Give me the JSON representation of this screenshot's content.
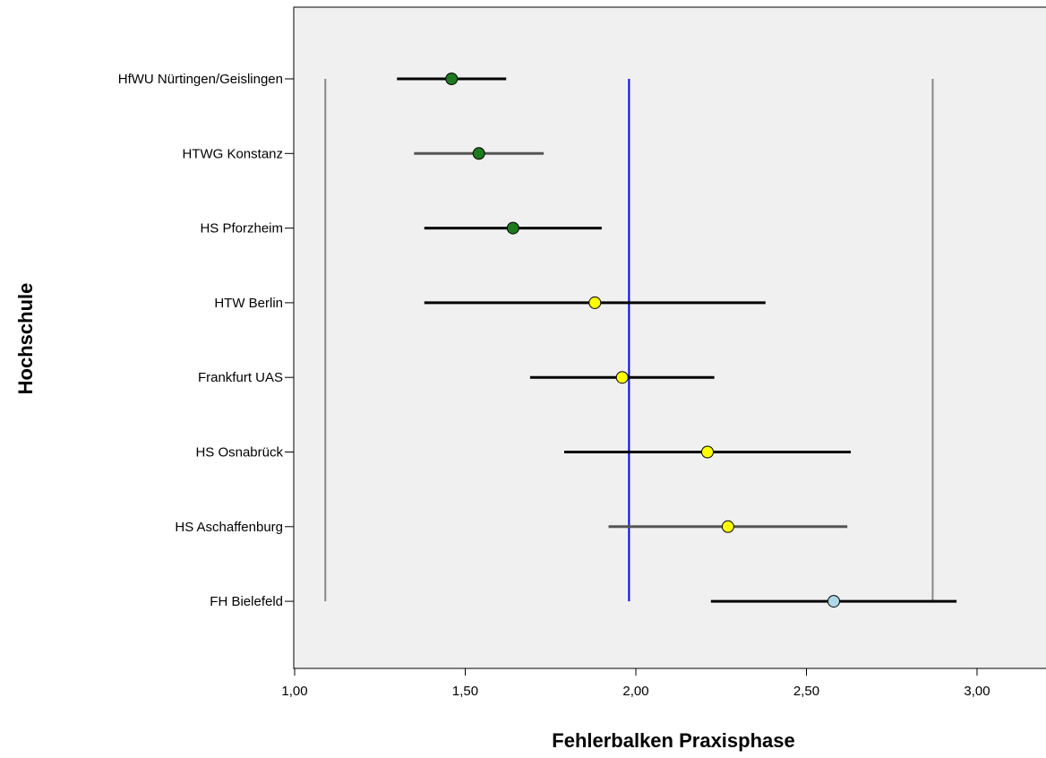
{
  "chart_data": {
    "type": "scatter",
    "subtype": "error-bar",
    "xlabel": "Fehlerbalken Praxisphase",
    "ylabel": "Hochschule",
    "xlim": [
      1.0,
      3.2
    ],
    "xticks": [
      {
        "value": 1.0,
        "label": "1,00"
      },
      {
        "value": 1.5,
        "label": "1,50"
      },
      {
        "value": 2.0,
        "label": "2,00"
      },
      {
        "value": 2.5,
        "label": "2,50"
      },
      {
        "value": 3.0,
        "label": "3,00"
      }
    ],
    "categories": [
      "HfWU Nürtingen/Geislingen",
      "HTWG Konstanz",
      "HS Pforzheim",
      "HTW Berlin",
      "Frankfurt UAS",
      "HS Osnabrück",
      "HS Aschaffenburg",
      "FH Bielefeld"
    ],
    "points": [
      {
        "category": "HfWU Nürtingen/Geislingen",
        "mean": 1.46,
        "lower": 1.3,
        "upper": 1.62,
        "marker_color": "#1e7a1e",
        "bar_color": "#000000"
      },
      {
        "category": "HTWG Konstanz",
        "mean": 1.54,
        "lower": 1.35,
        "upper": 1.73,
        "marker_color": "#1e7a1e",
        "bar_color": "#555555"
      },
      {
        "category": "HS Pforzheim",
        "mean": 1.64,
        "lower": 1.38,
        "upper": 1.9,
        "marker_color": "#1e7a1e",
        "bar_color": "#000000"
      },
      {
        "category": "HTW Berlin",
        "mean": 1.88,
        "lower": 1.38,
        "upper": 2.38,
        "marker_color": "#ffff00",
        "bar_color": "#000000"
      },
      {
        "category": "Frankfurt UAS",
        "mean": 1.96,
        "lower": 1.69,
        "upper": 2.23,
        "marker_color": "#ffff00",
        "bar_color": "#000000"
      },
      {
        "category": "HS Osnabrück",
        "mean": 2.21,
        "lower": 1.79,
        "upper": 2.63,
        "marker_color": "#ffff00",
        "bar_color": "#000000"
      },
      {
        "category": "HS Aschaffenburg",
        "mean": 2.27,
        "lower": 1.92,
        "upper": 2.62,
        "marker_color": "#ffff00",
        "bar_color": "#555555"
      },
      {
        "category": "FH Bielefeld",
        "mean": 2.58,
        "lower": 2.22,
        "upper": 2.94,
        "marker_color": "#add8e6",
        "bar_color": "#000000"
      }
    ],
    "reference_lines": [
      {
        "value": 1.09,
        "color": "#888888"
      },
      {
        "value": 1.98,
        "color": "#0000ff"
      },
      {
        "value": 2.87,
        "color": "#888888"
      }
    ],
    "grid": false,
    "legend": "none",
    "plot_background": "#f0f0f0"
  }
}
